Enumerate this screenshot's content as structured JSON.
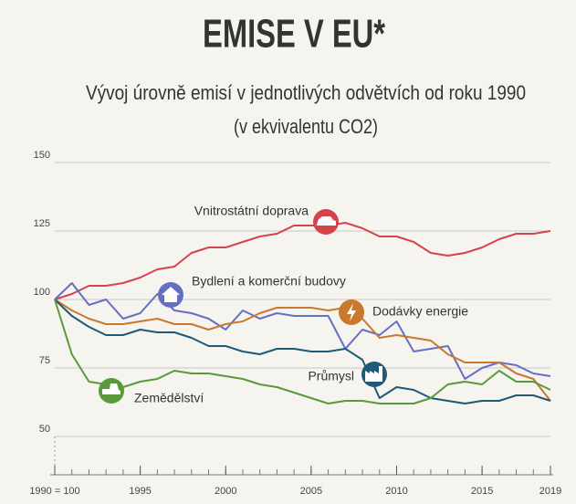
{
  "chart_data": {
    "type": "line",
    "title": "EMISE V EU*",
    "subtitle": [
      "Vývoj úrovně emisí v jednotlivých odvětvích od roku 1990",
      "(v ekvivalentu CO2)"
    ],
    "x": [
      1990,
      1991,
      1992,
      1993,
      1994,
      1995,
      1996,
      1997,
      1998,
      1999,
      2000,
      2001,
      2002,
      2003,
      2004,
      2005,
      2006,
      2007,
      2008,
      2009,
      2010,
      2011,
      2012,
      2013,
      2014,
      2015,
      2016,
      2017,
      2018,
      2019
    ],
    "xlim": [
      1990,
      2019
    ],
    "xticks": [
      {
        "value": 1990,
        "label": "1990 = 100"
      },
      1995,
      2000,
      2005,
      2010,
      2015,
      2019
    ],
    "ylim": [
      36,
      150
    ],
    "yticks": [
      50,
      75,
      100,
      125,
      150
    ],
    "grid": true,
    "series": [
      {
        "name": "Vnitrostátní doprava",
        "color": "#d5444a",
        "values": [
          100,
          102,
          105,
          105,
          106,
          108,
          111,
          112,
          117,
          119,
          119,
          121,
          123,
          124,
          127,
          127,
          127,
          128,
          126,
          123,
          123,
          121,
          117,
          116,
          117,
          119,
          122,
          124,
          124,
          125
        ]
      },
      {
        "name": "Bydlení a komerční budovy",
        "color": "#6670c2",
        "values": [
          100,
          106,
          98,
          100,
          93,
          95,
          102,
          96,
          95,
          93,
          89,
          96,
          93,
          95,
          94,
          94,
          94,
          82,
          89,
          87,
          92,
          81,
          82,
          83,
          71,
          75,
          77,
          76,
          73,
          72
        ]
      },
      {
        "name": "Dodávky energie",
        "color": "#c9782c",
        "values": [
          100,
          96,
          93,
          91,
          91,
          92,
          93,
          91,
          91,
          89,
          91,
          92,
          95,
          97,
          97,
          97,
          96,
          97,
          93,
          86,
          87,
          86,
          85,
          80,
          77,
          77,
          77,
          73,
          71,
          63
        ]
      },
      {
        "name": "Průmysl",
        "color": "#1e5a78",
        "values": [
          100,
          94,
          90,
          87,
          87,
          89,
          88,
          88,
          86,
          83,
          83,
          81,
          80,
          82,
          82,
          81,
          81,
          82,
          78,
          64,
          68,
          67,
          64,
          63,
          62,
          63,
          63,
          65,
          65,
          63
        ]
      },
      {
        "name": "Zemědělství",
        "color": "#5a9a3a",
        "values": [
          100,
          80,
          70,
          69,
          68,
          70,
          71,
          74,
          73,
          73,
          72,
          71,
          69,
          68,
          66,
          64,
          62,
          63,
          63,
          62,
          62,
          62,
          64,
          69,
          70,
          69,
          74,
          70,
          70,
          67
        ]
      }
    ]
  }
}
